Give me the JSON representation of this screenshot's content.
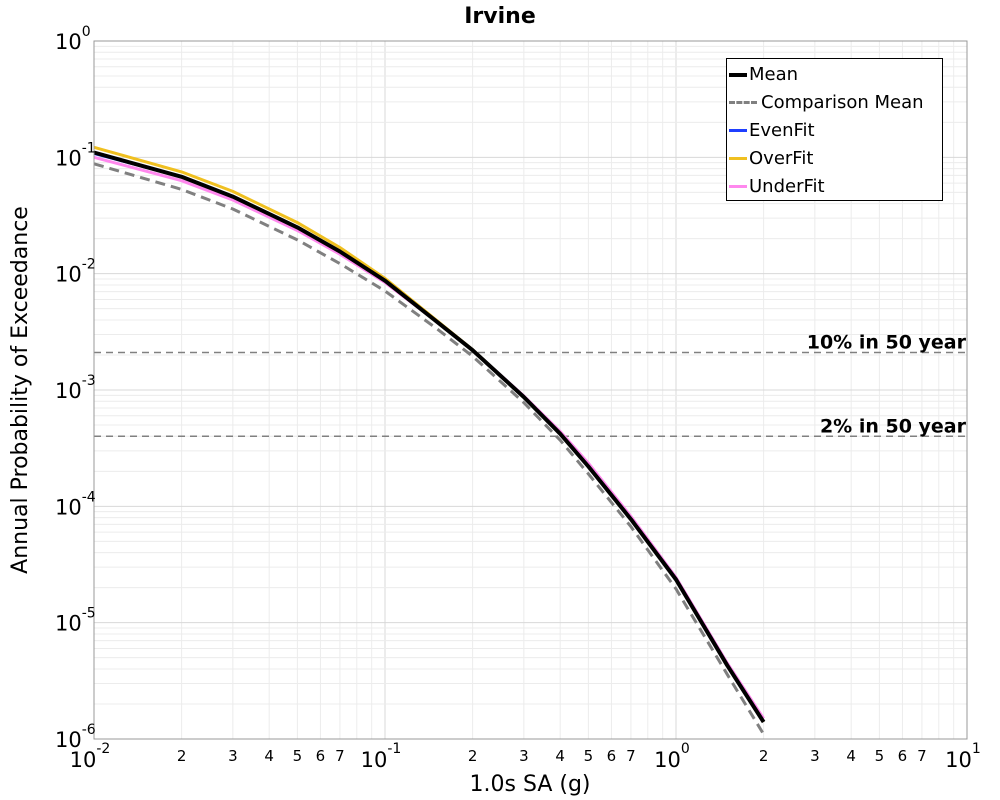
{
  "chart_data": {
    "type": "line",
    "title": "Irvine",
    "xlabel": "1.0s SA (g)",
    "ylabel": "Annual Probability of Exceedance",
    "x_scale": "log",
    "y_scale": "log",
    "xlim": [
      0.01,
      10
    ],
    "ylim": [
      1e-06,
      1
    ],
    "grid": true,
    "legend_position": "top-right",
    "x_ticks": [
      {
        "value": 0.01,
        "base": "10",
        "exp": "-2"
      },
      {
        "value": 0.1,
        "base": "10",
        "exp": "-1"
      },
      {
        "value": 1,
        "base": "10",
        "exp": "0"
      },
      {
        "value": 10,
        "base": "10",
        "exp": "1"
      }
    ],
    "x_minor_labels": [
      "2",
      "3",
      "4",
      "5",
      "6",
      "7"
    ],
    "y_ticks": [
      {
        "value": 1,
        "base": "10",
        "exp": "0"
      },
      {
        "value": 0.1,
        "base": "10",
        "exp": "-1"
      },
      {
        "value": 0.01,
        "base": "10",
        "exp": "-2"
      },
      {
        "value": 0.001,
        "base": "10",
        "exp": "-3"
      },
      {
        "value": 0.0001,
        "base": "10",
        "exp": "-4"
      },
      {
        "value": 1e-05,
        "base": "10",
        "exp": "-5"
      },
      {
        "value": 1e-06,
        "base": "10",
        "exp": "-6"
      }
    ],
    "reference_lines": [
      {
        "label": "10% in 50 year",
        "y": 0.0021
      },
      {
        "label": "2% in 50 year",
        "y": 0.0004
      }
    ],
    "series": [
      {
        "name": "EvenFit",
        "color": "#1f3fff",
        "dash": false,
        "x": [
          0.01,
          0.02,
          0.03,
          0.05,
          0.07,
          0.1,
          0.15,
          0.2,
          0.3,
          0.4,
          0.5,
          0.7,
          1.0,
          1.5,
          2.0,
          2.5
        ],
        "y": [
          0.108,
          0.068,
          0.046,
          0.025,
          0.0155,
          0.0087,
          0.0039,
          0.0022,
          0.00087,
          0.00042,
          0.00022,
          7.75e-05,
          2.35e-05,
          4.3e-06,
          1.4e-06,
          7.8e-07
        ]
      },
      {
        "name": "OverFit",
        "color": "#f0c020",
        "dash": false,
        "x": [
          0.01,
          0.02,
          0.03,
          0.05,
          0.07,
          0.1,
          0.15,
          0.2,
          0.3,
          0.4,
          0.5,
          0.7,
          1.0,
          1.5,
          2.0,
          2.5
        ],
        "y": [
          0.122,
          0.075,
          0.051,
          0.0275,
          0.0168,
          0.0091,
          0.004,
          0.00222,
          0.00087,
          0.00042,
          0.00022,
          7.8e-05,
          2.35e-05,
          4.3e-06,
          1.4e-06,
          7.8e-07
        ]
      },
      {
        "name": "UnderFit",
        "color": "#ff88ee",
        "dash": false,
        "x": [
          0.01,
          0.02,
          0.03,
          0.05,
          0.07,
          0.1,
          0.15,
          0.2,
          0.3,
          0.4,
          0.5,
          0.7,
          1.0,
          1.5,
          2.0,
          2.5
        ],
        "y": [
          0.1,
          0.063,
          0.043,
          0.0235,
          0.0147,
          0.0084,
          0.0039,
          0.0022,
          0.00089,
          0.00044,
          0.000235,
          8.2e-05,
          2.45e-05,
          4.5e-06,
          1.5e-06,
          8.2e-07
        ]
      },
      {
        "name": "Mean",
        "color": "#000000",
        "dash": false,
        "x": [
          0.01,
          0.02,
          0.03,
          0.05,
          0.07,
          0.1,
          0.15,
          0.2,
          0.3,
          0.4,
          0.5,
          0.7,
          1.0,
          1.5,
          2.0,
          2.5
        ],
        "y": [
          0.11,
          0.068,
          0.046,
          0.025,
          0.0155,
          0.0087,
          0.0039,
          0.0022,
          0.00087,
          0.00042,
          0.00022,
          7.75e-05,
          2.35e-05,
          4.3e-06,
          1.4e-06,
          7.8e-07
        ]
      },
      {
        "name": "Comparison Mean",
        "color": "#808080",
        "dash": true,
        "x": [
          0.01,
          0.02,
          0.03,
          0.05,
          0.07,
          0.1,
          0.15,
          0.2,
          0.3,
          0.4,
          0.5,
          0.7,
          1.0,
          1.5,
          2.0,
          2.5
        ],
        "y": [
          0.088,
          0.053,
          0.036,
          0.0195,
          0.0122,
          0.0071,
          0.0034,
          0.00195,
          0.00078,
          0.00037,
          0.00019,
          6.7e-05,
          1.95e-05,
          3.6e-06,
          1.1e-06,
          6e-07
        ]
      }
    ],
    "legend_order": [
      "Mean",
      "Comparison Mean",
      "EvenFit",
      "OverFit",
      "UnderFit"
    ]
  }
}
